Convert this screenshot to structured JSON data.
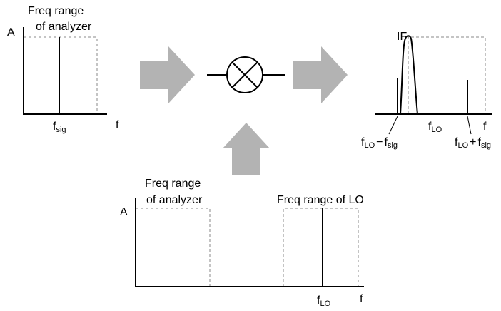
{
  "input_spectrum": {
    "range_label": [
      "Freq range",
      "of analyzer"
    ],
    "y_label": "A",
    "signal_label": {
      "base": "f",
      "sub": "sig"
    },
    "x_label": "f"
  },
  "output_spectrum": {
    "if_label": "IF",
    "lo_label": {
      "base": "f",
      "sub": "LO"
    },
    "difference_label": {
      "a": {
        "base": "f",
        "sub": "LO"
      },
      "op": "−",
      "b": {
        "base": "f",
        "sub": "sig"
      }
    },
    "sum_label": {
      "a": {
        "base": "f",
        "sub": "LO"
      },
      "op": "+",
      "b": {
        "base": "f",
        "sub": "sig"
      }
    },
    "x_label": "f"
  },
  "lo_spectrum": {
    "range_label": [
      "Freq range",
      "of analyzer"
    ],
    "lo_range_label": "Freq range of LO",
    "y_label": "A",
    "lo_label": {
      "base": "f",
      "sub": "LO"
    },
    "x_label": "f"
  }
}
